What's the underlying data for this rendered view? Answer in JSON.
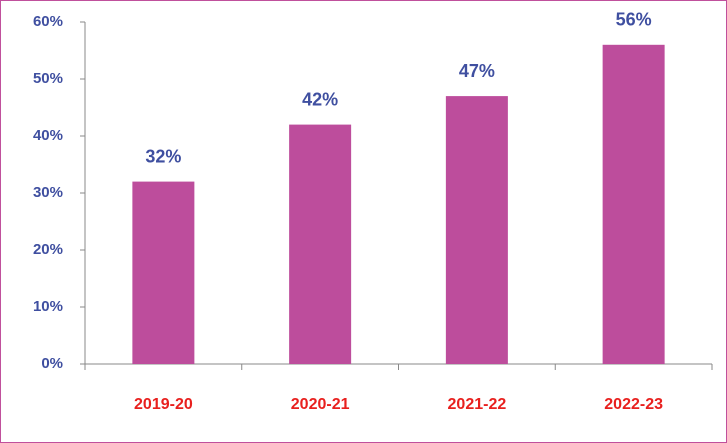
{
  "chart_data": {
    "type": "bar",
    "categories": [
      "2019-20",
      "2020-21",
      "2021-22",
      "2022-23"
    ],
    "values": [
      32,
      42,
      47,
      56
    ],
    "value_labels": [
      "32%",
      "42%",
      "47%",
      "56%"
    ],
    "color": "#bd4d9c",
    "ylim": [
      0,
      60
    ],
    "yticks": [
      {
        "value": 0,
        "label": "0%"
      },
      {
        "value": 10,
        "label": "10%"
      },
      {
        "value": 20,
        "label": "20%"
      },
      {
        "value": 30,
        "label": "30%"
      },
      {
        "value": 40,
        "label": "40%"
      },
      {
        "value": 50,
        "label": "50%"
      },
      {
        "value": 60,
        "label": "60%"
      }
    ],
    "grid": false
  }
}
